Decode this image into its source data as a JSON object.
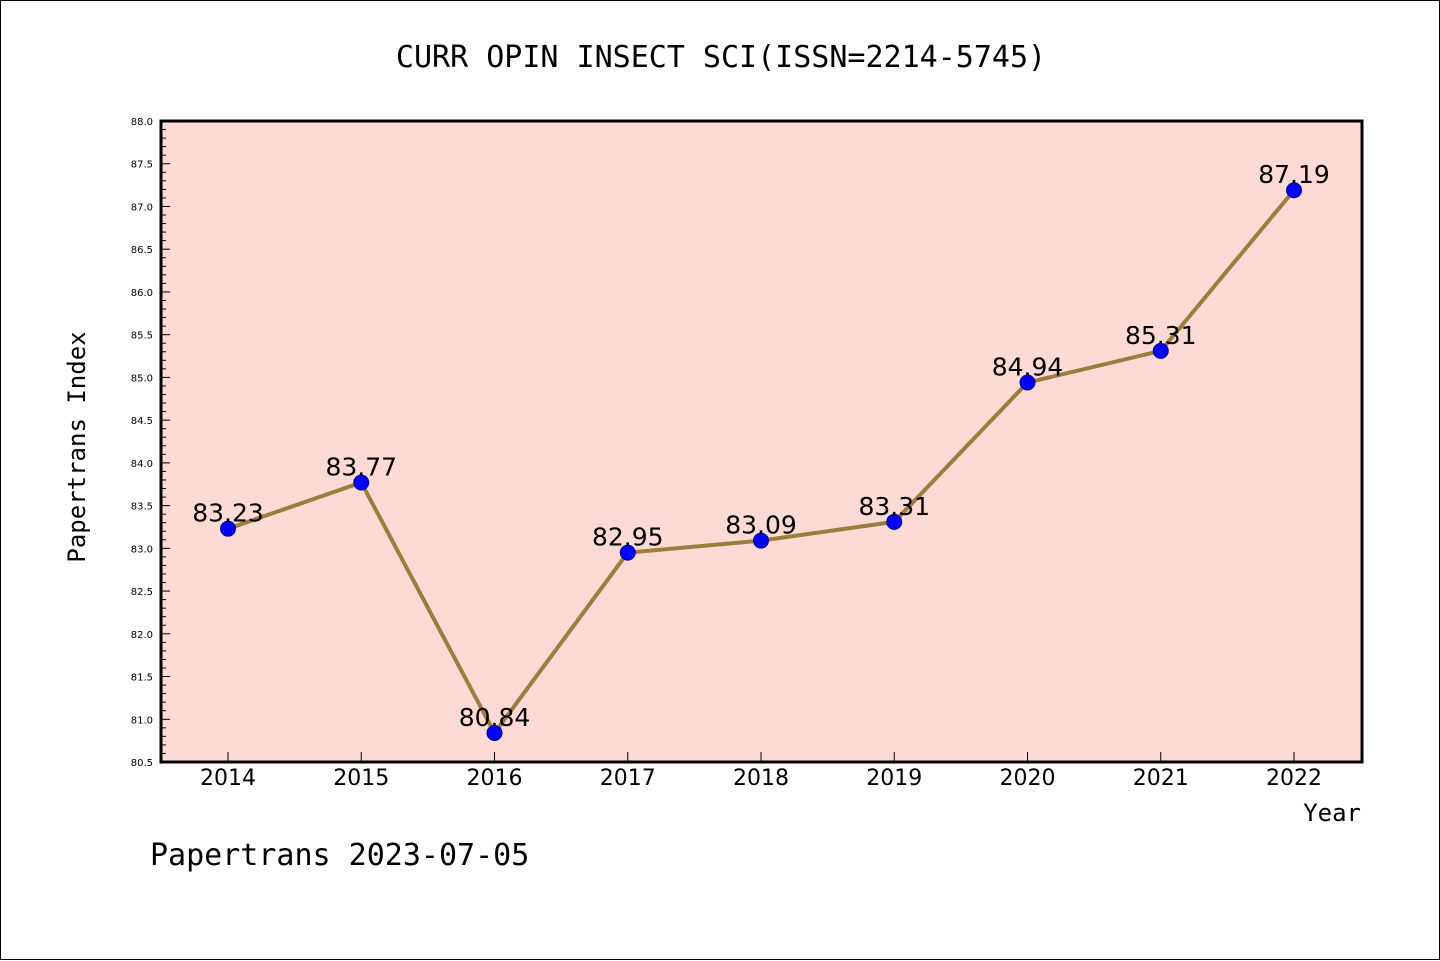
{
  "chart_data": {
    "type": "line",
    "title": "CURR OPIN INSECT SCI(ISSN=2214-5745)",
    "xlabel": "Year",
    "ylabel": "Papertrans Index",
    "categories": [
      "2014",
      "2015",
      "2016",
      "2017",
      "2018",
      "2019",
      "2020",
      "2021",
      "2022"
    ],
    "values": [
      83.23,
      83.77,
      80.84,
      82.95,
      83.09,
      83.31,
      84.94,
      85.31,
      87.19
    ],
    "data_labels": [
      "83.23",
      "83.77",
      "80.84",
      "82.95",
      "83.09",
      "83.31",
      "84.94",
      "85.31",
      "87.19"
    ],
    "ylim": [
      80.5,
      88.0
    ],
    "yticks": [
      "80.5",
      "81.0",
      "81.5",
      "82.0",
      "82.5",
      "83.0",
      "83.5",
      "84.0",
      "84.5",
      "85.0",
      "85.5",
      "86.0",
      "86.5",
      "87.0",
      "87.5",
      "88.0"
    ],
    "grid": false,
    "legend": "none",
    "colors": {
      "plot_background": "#fddad6",
      "line": "#9b7e3b",
      "marker": "#0000ff"
    }
  },
  "footer": {
    "watermark": "Papertrans 2023-07-05"
  }
}
